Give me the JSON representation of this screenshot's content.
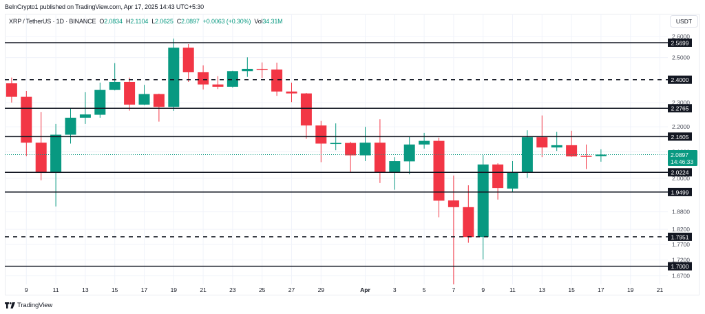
{
  "publish_line": "BeInCrypto1 published on TradingView.com, Apr 17, 2025 14:43 UTC+5:30",
  "legend": {
    "symbol": "XRP / TetherUS · 1D · BINANCE",
    "open_label": "O",
    "open": "2.0834",
    "high_label": "H",
    "high": "2.1104",
    "low_label": "L",
    "low": "2.0625",
    "close_label": "C",
    "close": "2.0897",
    "change": "+0.0063 (+0.30%)",
    "vol_label": "Vol",
    "vol": "34.31M"
  },
  "price_scale": {
    "currency": "USDT"
  },
  "current_price": {
    "value": "2.0897",
    "countdown": "14:46:33"
  },
  "footer": {
    "brand": "TradingView"
  },
  "colors": {
    "up": "#089981",
    "down": "#F23645",
    "level_line": "#131722",
    "level_label_bg": "#131722",
    "grid": "#f0f3fa",
    "axis_text": "#4a4e5a"
  },
  "chart_data": {
    "type": "candlestick",
    "title": "XRP / TetherUS · 1D · BINANCE",
    "xlabel": "",
    "ylabel": "USDT",
    "y_scale": "log",
    "ylim": [
      1.644,
      2.711
    ],
    "grid": true,
    "last_price": 2.0897,
    "candles": [
      {
        "date": "Mar 8",
        "o": 2.384,
        "h": 2.4095,
        "l": 2.3007,
        "c": 2.3252
      },
      {
        "date": "Mar 9",
        "o": 2.3252,
        "h": 2.3509,
        "l": 2.0835,
        "c": 2.1363
      },
      {
        "date": "Mar 10",
        "o": 2.1363,
        "h": 2.2601,
        "l": 1.9927,
        "c": 2.0203
      },
      {
        "date": "Mar 11",
        "o": 2.0203,
        "h": 2.2118,
        "l": 1.8987,
        "c": 2.1681
      },
      {
        "date": "Mar 12",
        "o": 2.1681,
        "h": 2.2765,
        "l": 2.1327,
        "c": 2.2372
      },
      {
        "date": "Mar 13",
        "o": 2.2372,
        "h": 2.345,
        "l": 2.2118,
        "c": 2.2507
      },
      {
        "date": "Mar 14",
        "o": 2.2495,
        "h": 2.3871,
        "l": 2.2372,
        "c": 2.3549
      },
      {
        "date": "Mar 15",
        "o": 2.3549,
        "h": 2.4747,
        "l": 2.353,
        "c": 2.3902
      },
      {
        "date": "Mar 16",
        "o": 2.3902,
        "h": 2.4095,
        "l": 2.2667,
        "c": 2.292
      },
      {
        "date": "Mar 17",
        "o": 2.292,
        "h": 2.3771,
        "l": 2.29,
        "c": 2.3371
      },
      {
        "date": "Mar 18",
        "o": 2.3371,
        "h": 2.339,
        "l": 2.2211,
        "c": 2.2824
      },
      {
        "date": "Mar 19",
        "o": 2.2824,
        "h": 2.5896,
        "l": 2.2658,
        "c": 2.5462
      },
      {
        "date": "Mar 20",
        "o": 2.5462,
        "h": 2.5634,
        "l": 2.3902,
        "c": 2.4332
      },
      {
        "date": "Mar 21",
        "o": 2.4332,
        "h": 2.4643,
        "l": 2.357,
        "c": 2.379
      },
      {
        "date": "Mar 22",
        "o": 2.379,
        "h": 2.4155,
        "l": 2.3591,
        "c": 2.369
      },
      {
        "date": "Mar 23",
        "o": 2.369,
        "h": 2.44,
        "l": 2.365,
        "c": 2.4384
      },
      {
        "date": "Mar 24",
        "o": 2.4384,
        "h": 2.5012,
        "l": 2.4126,
        "c": 2.4487
      },
      {
        "date": "Mar 25",
        "o": 2.4487,
        "h": 2.4779,
        "l": 2.4076,
        "c": 2.4456
      },
      {
        "date": "Mar 26",
        "o": 2.4456,
        "h": 2.4769,
        "l": 2.3294,
        "c": 2.3481
      },
      {
        "date": "Mar 27",
        "o": 2.3481,
        "h": 2.3871,
        "l": 2.3028,
        "c": 2.3399
      },
      {
        "date": "Mar 28",
        "o": 2.3399,
        "h": 2.342,
        "l": 2.1517,
        "c": 2.2052
      },
      {
        "date": "Mar 29",
        "o": 2.2052,
        "h": 2.2238,
        "l": 2.0607,
        "c": 2.1327
      },
      {
        "date": "Mar 30",
        "o": 2.132,
        "h": 2.2138,
        "l": 2.1066,
        "c": 2.1353
      },
      {
        "date": "Mar 31",
        "o": 2.1353,
        "h": 2.1399,
        "l": 2.0234,
        "c": 2.0869
      },
      {
        "date": "Apr 1",
        "o": 2.0869,
        "h": 2.1997,
        "l": 2.0651,
        "c": 2.1363
      },
      {
        "date": "Apr 2",
        "o": 2.1363,
        "h": 2.2307,
        "l": 1.9827,
        "c": 2.0222
      },
      {
        "date": "Apr 3",
        "o": 2.0222,
        "h": 2.08,
        "l": 1.9583,
        "c": 2.0645
      },
      {
        "date": "Apr 4",
        "o": 2.0637,
        "h": 2.161,
        "l": 2.0149,
        "c": 2.1291
      },
      {
        "date": "Apr 5",
        "o": 2.1291,
        "h": 2.1755,
        "l": 2.1129,
        "c": 2.1434
      },
      {
        "date": "Apr 6",
        "o": 2.1434,
        "h": 2.1563,
        "l": 1.8611,
        "c": 1.9191
      },
      {
        "date": "Apr 7",
        "o": 1.9199,
        "h": 2.0106,
        "l": 1.64,
        "c": 1.8963
      },
      {
        "date": "Apr 8",
        "o": 1.8963,
        "h": 1.9744,
        "l": 1.7755,
        "c": 1.7944
      },
      {
        "date": "Apr 9",
        "o": 1.7944,
        "h": 2.088,
        "l": 1.722,
        "c": 2.0519
      },
      {
        "date": "Apr 10",
        "o": 2.0519,
        "h": 2.0564,
        "l": 1.923,
        "c": 1.9644
      },
      {
        "date": "Apr 11",
        "o": 1.9626,
        "h": 2.0645,
        "l": 1.9501,
        "c": 2.0216
      },
      {
        "date": "Apr 12",
        "o": 2.0216,
        "h": 2.1857,
        "l": 2.0023,
        "c": 2.1582
      },
      {
        "date": "Apr 13",
        "o": 2.1582,
        "h": 2.2466,
        "l": 2.08,
        "c": 2.1174
      },
      {
        "date": "Apr 14",
        "o": 2.1174,
        "h": 2.1792,
        "l": 2.1041,
        "c": 2.1263
      },
      {
        "date": "Apr 15",
        "o": 2.1263,
        "h": 2.184,
        "l": 2.081,
        "c": 2.0827
      },
      {
        "date": "Apr 16",
        "o": 2.085,
        "h": 2.1291,
        "l": 2.0345,
        "c": 2.0834
      },
      {
        "date": "Apr 17",
        "o": 2.0834,
        "h": 2.1104,
        "l": 2.0625,
        "c": 2.0897
      }
    ],
    "x_ticks": [
      {
        "label": "9",
        "index": 1
      },
      {
        "label": "11",
        "index": 3
      },
      {
        "label": "13",
        "index": 5
      },
      {
        "label": "15",
        "index": 7
      },
      {
        "label": "17",
        "index": 9
      },
      {
        "label": "19",
        "index": 11
      },
      {
        "label": "21",
        "index": 13
      },
      {
        "label": "23",
        "index": 15
      },
      {
        "label": "25",
        "index": 17
      },
      {
        "label": "27",
        "index": 19
      },
      {
        "label": "29",
        "index": 21
      },
      {
        "label": "Apr",
        "index": 24,
        "bold": true
      },
      {
        "label": "3",
        "index": 26
      },
      {
        "label": "5",
        "index": 28
      },
      {
        "label": "7",
        "index": 30
      },
      {
        "label": "9",
        "index": 32
      },
      {
        "label": "11",
        "index": 34
      },
      {
        "label": "13",
        "index": 36
      },
      {
        "label": "15",
        "index": 38
      },
      {
        "label": "17",
        "index": 40
      },
      {
        "label": "19",
        "index": 42
      },
      {
        "label": "21",
        "index": 44
      }
    ],
    "y_ticks": [
      {
        "price": 2.6,
        "label": "2.6000"
      },
      {
        "price": 2.5,
        "label": "2.5000"
      },
      {
        "price": 2.3,
        "label": "2.3000"
      },
      {
        "price": 2.2,
        "label": "2.2000"
      },
      {
        "price": 2.1,
        "label": "2.1000"
      },
      {
        "price": 2.0,
        "label": "2.0000"
      },
      {
        "price": 1.88,
        "label": "1.8800"
      },
      {
        "price": 1.82,
        "label": "1.8200"
      },
      {
        "price": 1.77,
        "label": "1.7700"
      },
      {
        "price": 1.72,
        "label": "1.7200"
      },
      {
        "price": 1.67,
        "label": "1.6700"
      }
    ],
    "levels": [
      {
        "price": 2.5699,
        "label": "2.5699",
        "style": "solid"
      },
      {
        "price": 2.4,
        "label": "2.4000",
        "style": "dashed"
      },
      {
        "price": 2.2765,
        "label": "2.2765",
        "style": "solid"
      },
      {
        "price": 2.1605,
        "label": "2.1605",
        "style": "solid"
      },
      {
        "price": 2.0224,
        "label": "2.0224",
        "style": "solid"
      },
      {
        "price": 1.9499,
        "label": "1.9499",
        "style": "solid"
      },
      {
        "price": 1.7951,
        "label": "1.7951",
        "style": "dashed"
      },
      {
        "price": 1.7,
        "label": "1.7000",
        "style": "solid"
      }
    ]
  }
}
